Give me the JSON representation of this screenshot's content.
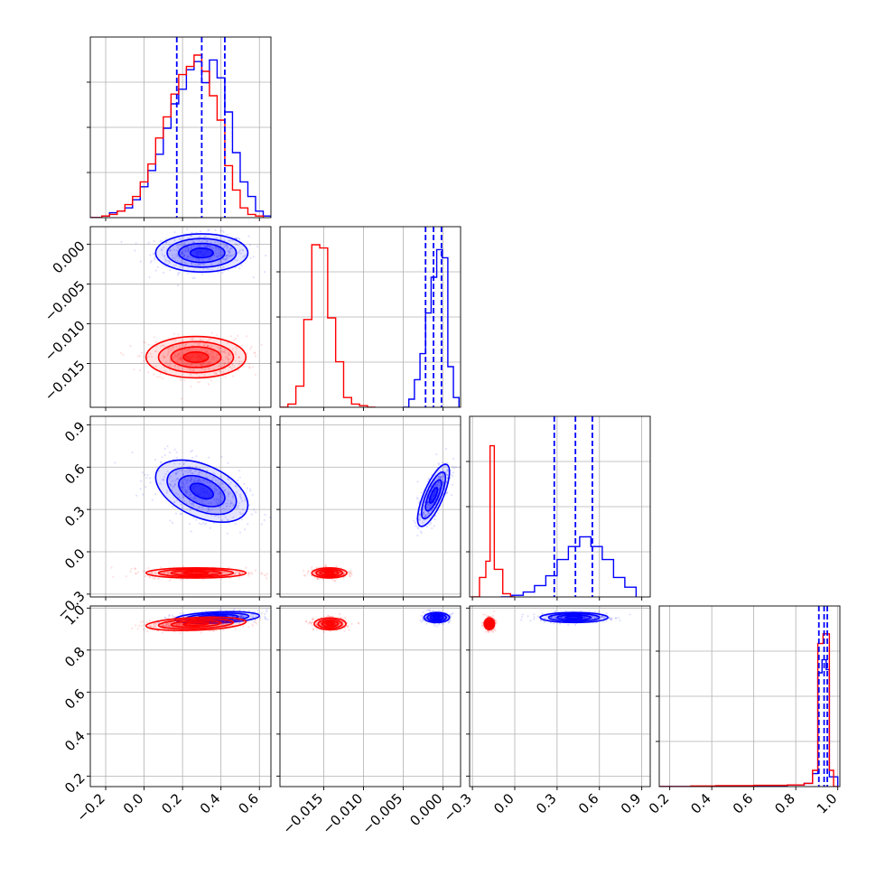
{
  "chart_data": {
    "type": "corner",
    "n_params": 4,
    "grid": true,
    "series": [
      {
        "color": "#0000ff",
        "quantiles": [
          [
            0.17,
            0.3,
            0.42
          ],
          [
            -0.0022,
            -0.0012,
            -0.0002
          ],
          [
            0.28,
            0.43,
            0.55
          ],
          [
            0.91,
            0.935,
            0.95
          ]
        ],
        "hist": [
          {
            "edges": [
              -0.28,
              -0.22,
              -0.18,
              -0.14,
              -0.1,
              -0.06,
              -0.02,
              0.02,
              0.06,
              0.1,
              0.14,
              0.18,
              0.22,
              0.26,
              0.3,
              0.34,
              0.38,
              0.42,
              0.46,
              0.5,
              0.54,
              0.58,
              0.62,
              0.66
            ],
            "counts": [
              0.0,
              0.01,
              0.03,
              0.04,
              0.06,
              0.11,
              0.19,
              0.29,
              0.39,
              0.55,
              0.7,
              0.79,
              0.91,
              0.96,
              0.83,
              0.97,
              0.86,
              0.65,
              0.4,
              0.22,
              0.13,
              0.04,
              0.01
            ]
          },
          {
            "edges": [
              -0.005,
              -0.0043,
              -0.0036,
              -0.0029,
              -0.0022,
              -0.0015,
              -0.0008,
              -0.0001,
              0.0006,
              0.0013,
              0.002
            ],
            "counts": [
              0.0,
              0.05,
              0.17,
              0.33,
              0.58,
              0.8,
              0.97,
              0.92,
              0.25,
              0.06
            ]
          },
          {
            "edges": [
              -0.1,
              -0.02,
              0.06,
              0.14,
              0.22,
              0.3,
              0.38,
              0.46,
              0.54,
              0.62,
              0.7,
              0.78,
              0.86
            ],
            "counts": [
              0.0,
              0.01,
              0.03,
              0.07,
              0.13,
              0.23,
              0.31,
              0.37,
              0.31,
              0.23,
              0.12,
              0.06
            ]
          },
          {
            "edges": [
              0.15,
              0.3,
              0.42,
              0.6,
              0.76,
              0.84,
              0.88,
              0.905,
              0.925,
              0.945,
              0.96,
              1.0
            ],
            "counts": [
              0.0,
              0.002,
              0.004,
              0.006,
              0.01,
              0.02,
              0.08,
              0.7,
              0.78,
              0.72,
              0.06
            ]
          }
        ]
      },
      {
        "color": "#ff0000",
        "quantiles": [],
        "hist": [
          {
            "edges": [
              -0.28,
              -0.22,
              -0.18,
              -0.14,
              -0.1,
              -0.06,
              -0.02,
              0.02,
              0.06,
              0.1,
              0.14,
              0.18,
              0.22,
              0.26,
              0.3,
              0.34,
              0.38,
              0.42,
              0.46,
              0.5,
              0.54,
              0.58,
              0.62
            ],
            "counts": [
              0.0,
              0.01,
              0.02,
              0.04,
              0.08,
              0.13,
              0.22,
              0.33,
              0.49,
              0.62,
              0.76,
              0.88,
              0.93,
              1.0,
              0.9,
              0.75,
              0.6,
              0.32,
              0.17,
              0.06,
              0.02,
              0.01
            ]
          },
          {
            "edges": [
              -0.0205,
              -0.0195,
              -0.0185,
              -0.0175,
              -0.0165,
              -0.0155,
              -0.0145,
              -0.0135,
              -0.0125,
              -0.0115,
              -0.0105,
              -0.0095,
              -0.0085
            ],
            "counts": [
              0.0,
              0.02,
              0.13,
              0.54,
              1.0,
              0.98,
              0.55,
              0.28,
              0.06,
              0.02,
              0.01,
              0.0
            ]
          },
          {
            "edges": [
              -0.31,
              -0.25,
              -0.205,
              -0.175,
              -0.145,
              -0.085,
              -0.03,
              0.0
            ],
            "counts": [
              0.0,
              0.12,
              0.22,
              0.93,
              0.17,
              0.02,
              0.0
            ]
          },
          {
            "edges": [
              0.15,
              0.3,
              0.42,
              0.6,
              0.76,
              0.84,
              0.88,
              0.905,
              0.93,
              0.96,
              0.98,
              1.0
            ],
            "counts": [
              0.0,
              0.004,
              0.006,
              0.008,
              0.01,
              0.02,
              0.1,
              0.88,
              0.94,
              0.1,
              0.0
            ]
          }
        ]
      }
    ],
    "blobs": [
      {
        "color": "#0000ff",
        "params": [
          0,
          1
        ],
        "mean": [
          0.3,
          -0.0011
        ],
        "sd": [
          0.12,
          0.0012
        ],
        "corr": 0.0
      },
      {
        "color": "#ff0000",
        "params": [
          0,
          1
        ],
        "mean": [
          0.27,
          -0.0142
        ],
        "sd": [
          0.13,
          0.0013
        ],
        "corr": 0.0
      },
      {
        "color": "#0000ff",
        "params": [
          0,
          2
        ],
        "mean": [
          0.3,
          0.43
        ],
        "sd": [
          0.12,
          0.11
        ],
        "corr": -0.45
      },
      {
        "color": "#ff0000",
        "params": [
          0,
          2
        ],
        "mean": [
          0.27,
          -0.15
        ],
        "sd": [
          0.13,
          0.018
        ],
        "corr": 0.0
      },
      {
        "color": "#0000ff",
        "params": [
          1,
          2
        ],
        "mean": [
          -0.0012,
          0.4
        ],
        "sd": [
          0.001,
          0.11
        ],
        "corr": 0.75
      },
      {
        "color": "#ff0000",
        "params": [
          1,
          2
        ],
        "mean": [
          -0.0143,
          -0.15
        ],
        "sd": [
          0.0011,
          0.018
        ],
        "corr": 0.0
      },
      {
        "color": "#0000ff",
        "params": [
          0,
          3
        ],
        "mean": [
          0.38,
          0.955
        ],
        "sd": [
          0.11,
          0.014
        ],
        "corr": 0.3
      },
      {
        "color": "#ff0000",
        "params": [
          0,
          3
        ],
        "mean": [
          0.27,
          0.925
        ],
        "sd": [
          0.13,
          0.016
        ],
        "corr": 0.3
      },
      {
        "color": "#0000ff",
        "params": [
          1,
          3
        ],
        "mean": [
          -0.0008,
          0.955
        ],
        "sd": [
          0.0008,
          0.012
        ],
        "corr": 0.0
      },
      {
        "color": "#ff0000",
        "params": [
          1,
          3
        ],
        "mean": [
          -0.0142,
          0.925
        ],
        "sd": [
          0.001,
          0.014
        ],
        "corr": 0.0
      },
      {
        "color": "#0000ff",
        "params": [
          2,
          3
        ],
        "mean": [
          0.42,
          0.955
        ],
        "sd": [
          0.12,
          0.012
        ],
        "corr": 0.0
      },
      {
        "color": "#ff0000",
        "params": [
          2,
          3
        ],
        "mean": [
          -0.18,
          0.925
        ],
        "sd": [
          0.018,
          0.014
        ],
        "corr": 0.0
      }
    ],
    "ranges": [
      [
        -0.28,
        0.66
      ],
      [
        -0.0205,
        0.0022
      ],
      [
        -0.32,
        0.96
      ],
      [
        0.15,
        1.01
      ]
    ],
    "ticks": [
      {
        "values": [
          -0.2,
          0.0,
          0.2,
          0.4,
          0.6
        ],
        "labels": [
          "−0.2",
          "0.0",
          "0.2",
          "0.4",
          "0.6"
        ]
      },
      {
        "values": [
          -0.015,
          -0.01,
          -0.005,
          0.0
        ],
        "labels": [
          "−0.015",
          "−0.010",
          "−0.005",
          "0.000"
        ]
      },
      {
        "values": [
          -0.3,
          0.0,
          0.3,
          0.6,
          0.9
        ],
        "labels": [
          "−0.3",
          "0.0",
          "0.3",
          "0.6",
          "0.9"
        ]
      },
      {
        "values": [
          0.2,
          0.4,
          0.6,
          0.8,
          1.0
        ],
        "labels": [
          "0.2",
          "0.4",
          "0.6",
          "0.8",
          "1.0"
        ]
      }
    ]
  }
}
